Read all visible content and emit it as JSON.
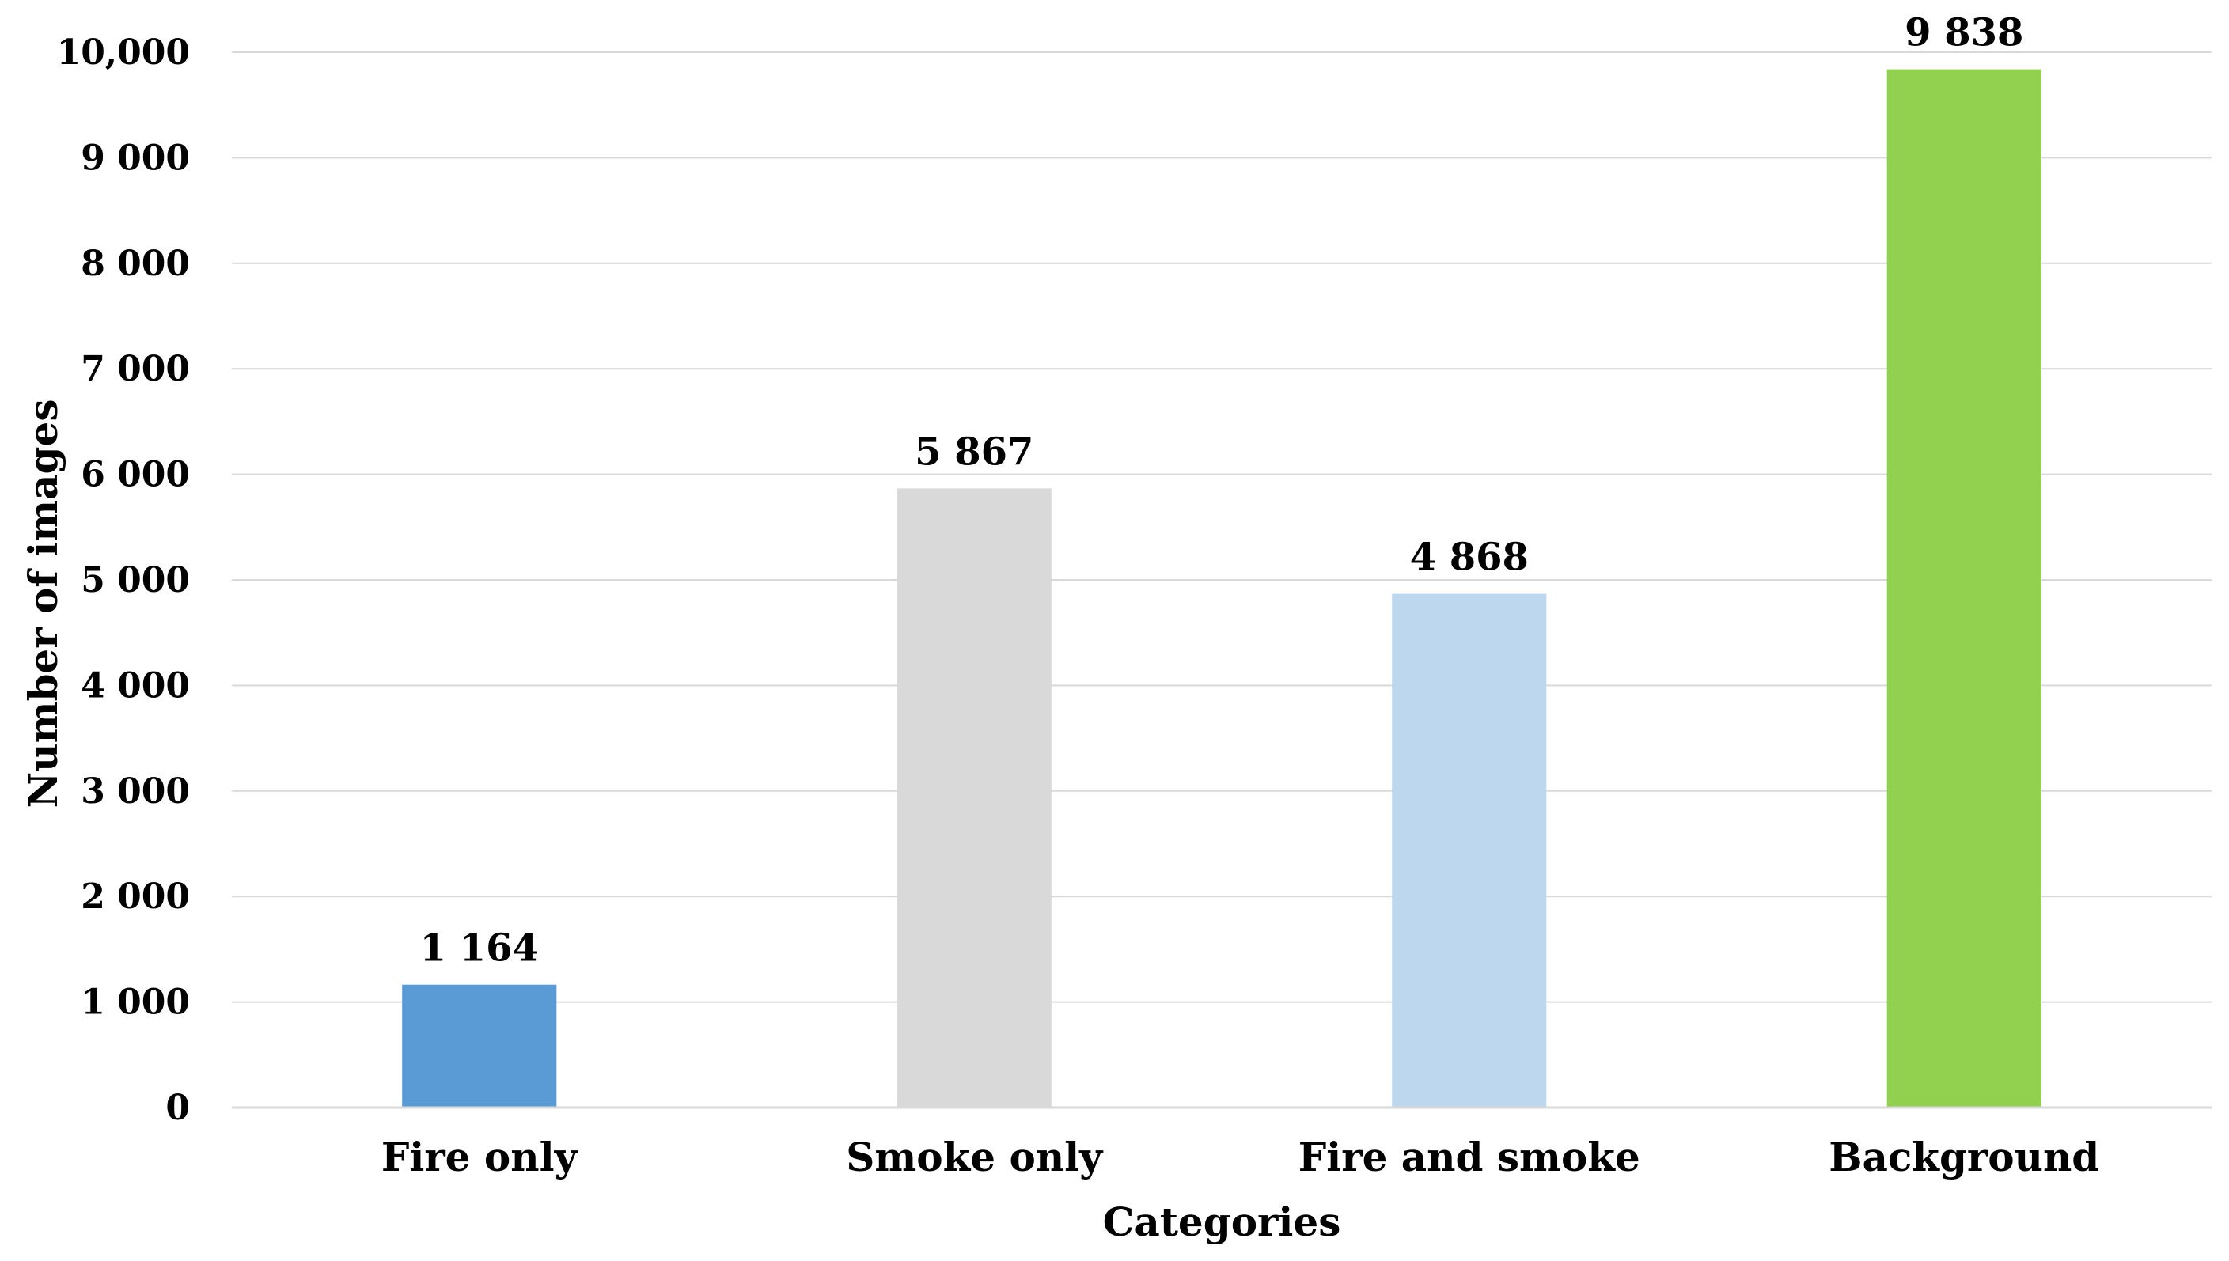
{
  "chart_data": {
    "type": "bar",
    "title": "",
    "xlabel": "Categories",
    "ylabel": "Number of images",
    "categories": [
      "Fire only",
      "Smoke only",
      "Fire and smoke",
      "Background"
    ],
    "values": [
      1164,
      5867,
      4868,
      9838
    ],
    "value_labels": [
      "1 164",
      "5 867",
      "4 868",
      "9 838"
    ],
    "colors": [
      "#5b9bd5",
      "#d9d9d9",
      "#bdd7ee",
      "#92d050"
    ],
    "ylim": [
      0,
      10000
    ],
    "yticks": [
      0,
      1000,
      2000,
      3000,
      4000,
      5000,
      6000,
      7000,
      8000,
      9000,
      10000
    ],
    "ytick_labels": [
      "0",
      "1 000",
      "2 000",
      "3 000",
      "4 000",
      "5 000",
      "6 000",
      "7 000",
      "8 000",
      "9 000",
      "10,000"
    ],
    "grid": true,
    "legend": "none",
    "gridline_color": "#d9d9d9"
  }
}
